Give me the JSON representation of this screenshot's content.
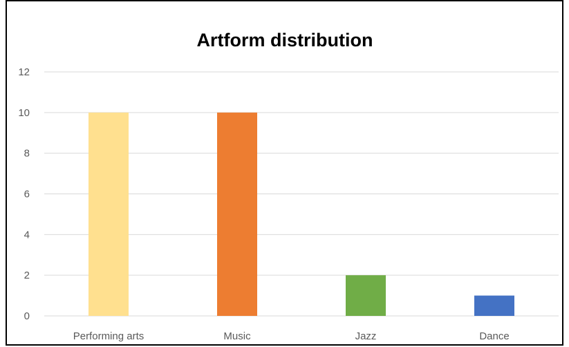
{
  "chart_data": {
    "type": "bar",
    "title": "Artform distribution",
    "xlabel": "",
    "ylabel": "",
    "categories": [
      "Performing arts",
      "Music",
      "Jazz",
      "Dance"
    ],
    "values": [
      10,
      10,
      2,
      1
    ],
    "colors": [
      "#FFE08F",
      "#ED7D31",
      "#70AD47",
      "#4472C4"
    ],
    "ylim": [
      0,
      12
    ],
    "yticks": [
      "0",
      "2",
      "4",
      "6",
      "8",
      "10",
      "12"
    ],
    "grid": true,
    "legend": "none"
  }
}
